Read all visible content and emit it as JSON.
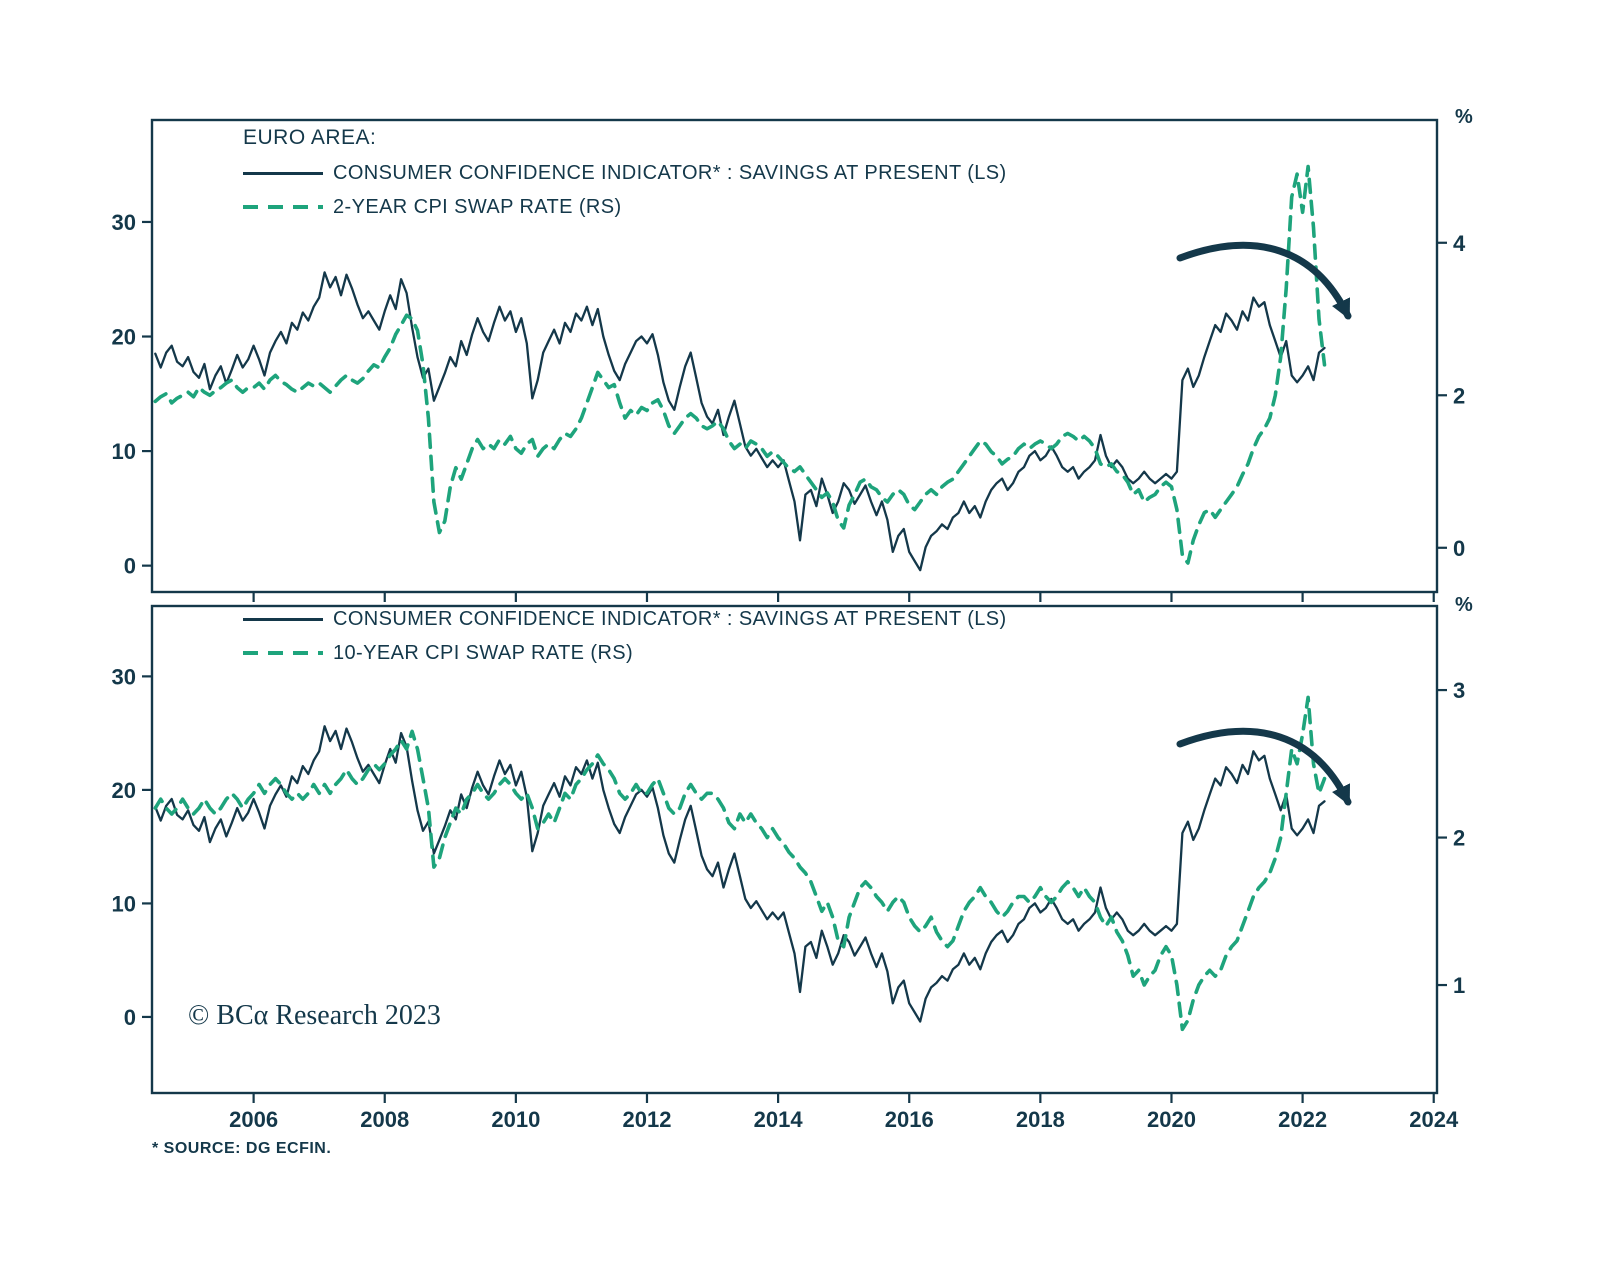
{
  "colors": {
    "confidence_line": "#14384a",
    "swap_line": "#1ea47c",
    "axis": "#14384a",
    "background": "#ffffff"
  },
  "footer": {
    "source_note": "* SOURCE: DG ECFIN.",
    "copyright": "© BCα Research 2023"
  },
  "chart_data": [
    {
      "type": "line",
      "panel": "top",
      "title": "EURO AREA:",
      "grid": false,
      "legend_position": "top-left-inside",
      "annotation": "curved-arrow-down-right",
      "x_ticks": [
        2006,
        2008,
        2010,
        2012,
        2014,
        2016,
        2018,
        2020,
        2022,
        2024
      ],
      "x_range": [
        2004.45,
        2024.05
      ],
      "left_axis": {
        "ticks": [
          30,
          20,
          10,
          0
        ],
        "lim": [
          -2.3,
          38.9
        ]
      },
      "right_axis": {
        "ticks": [
          4,
          2,
          0
        ],
        "lim": [
          -0.58,
          5.61
        ],
        "unit": "%"
      },
      "series": [
        {
          "name": "CONSUMER CONFIDENCE INDICATOR* : SAVINGS AT PRESENT (LS)",
          "axis": "left",
          "line_style": "solid",
          "x_start": 2004.5,
          "x_step_months": 1,
          "values": [
            18.5,
            17.3,
            18.6,
            19.2,
            17.8,
            17.4,
            18.2,
            16.9,
            16.4,
            17.6,
            15.4,
            16.6,
            17.4,
            15.9,
            17.1,
            18.4,
            17.3,
            18.0,
            19.2,
            18.0,
            16.6,
            18.6,
            19.6,
            20.4,
            19.4,
            21.2,
            20.6,
            22.1,
            21.4,
            22.6,
            23.4,
            25.6,
            24.3,
            25.2,
            23.6,
            25.4,
            24.2,
            22.8,
            21.6,
            22.2,
            21.4,
            20.6,
            22.2,
            23.6,
            22.4,
            25.0,
            23.8,
            20.8,
            18.2,
            16.4,
            17.2,
            14.4,
            15.6,
            16.8,
            18.2,
            17.4,
            19.6,
            18.4,
            20.2,
            21.6,
            20.4,
            19.6,
            21.2,
            22.6,
            21.4,
            22.2,
            20.4,
            21.6,
            19.4,
            14.6,
            16.2,
            18.6,
            19.6,
            20.6,
            19.4,
            21.2,
            20.4,
            22.0,
            21.4,
            22.6,
            21.0,
            22.4,
            20.0,
            18.4,
            17.0,
            16.2,
            17.6,
            18.6,
            19.6,
            20.0,
            19.4,
            20.2,
            18.4,
            16.0,
            14.4,
            13.6,
            15.6,
            17.4,
            18.6,
            16.4,
            14.2,
            13.0,
            12.4,
            13.6,
            11.4,
            13.0,
            14.4,
            12.4,
            10.4,
            9.6,
            10.2,
            9.4,
            8.6,
            9.2,
            8.6,
            9.2,
            7.4,
            5.6,
            2.2,
            6.2,
            6.6,
            5.2,
            7.6,
            6.2,
            4.6,
            5.6,
            7.2,
            6.6,
            5.4,
            6.2,
            7.0,
            5.6,
            4.4,
            5.6,
            4.0,
            1.2,
            2.6,
            3.2,
            1.2,
            0.4,
            -0.4,
            1.6,
            2.6,
            3.0,
            3.6,
            3.2,
            4.2,
            4.6,
            5.6,
            4.6,
            5.2,
            4.2,
            5.6,
            6.6,
            7.2,
            7.6,
            6.6,
            7.2,
            8.2,
            8.6,
            9.6,
            10.0,
            9.2,
            9.6,
            10.4,
            9.6,
            8.6,
            8.2,
            8.6,
            7.6,
            8.2,
            8.6,
            9.2,
            11.4,
            9.6,
            8.6,
            9.2,
            8.6,
            7.6,
            7.2,
            7.6,
            8.2,
            7.6,
            7.2,
            7.6,
            8.0,
            7.6,
            8.2,
            16.2,
            17.2,
            15.6,
            16.6,
            18.2,
            19.6,
            21.0,
            20.4,
            22.0,
            21.4,
            20.6,
            22.2,
            21.4,
            23.4,
            22.6,
            23.0,
            21.0,
            19.6,
            18.2,
            19.6,
            16.6,
            16.0,
            16.6,
            17.4,
            16.2,
            18.6,
            19.0
          ]
        },
        {
          "name": "2-YEAR CPI SWAP RATE (RS)",
          "axis": "right",
          "line_style": "dashed",
          "x_start": 2004.5,
          "x_step_months": 1,
          "values": [
            1.92,
            1.98,
            2.02,
            1.9,
            1.96,
            2.0,
            2.04,
            1.98,
            2.1,
            2.04,
            2.0,
            2.06,
            2.1,
            2.16,
            2.2,
            2.1,
            2.04,
            2.1,
            2.1,
            2.16,
            2.08,
            2.2,
            2.26,
            2.18,
            2.14,
            2.08,
            2.04,
            2.1,
            2.16,
            2.12,
            2.16,
            2.1,
            2.04,
            2.12,
            2.2,
            2.26,
            2.2,
            2.16,
            2.22,
            2.32,
            2.4,
            2.36,
            2.5,
            2.62,
            2.8,
            2.92,
            3.05,
            3.0,
            2.85,
            2.4,
            1.7,
            0.6,
            0.2,
            0.35,
            0.8,
            1.05,
            0.9,
            1.1,
            1.3,
            1.42,
            1.3,
            1.36,
            1.3,
            1.42,
            1.36,
            1.46,
            1.3,
            1.24,
            1.36,
            1.42,
            1.2,
            1.3,
            1.36,
            1.3,
            1.42,
            1.5,
            1.46,
            1.56,
            1.7,
            1.9,
            2.1,
            2.3,
            2.2,
            2.1,
            2.14,
            1.9,
            1.7,
            1.8,
            1.74,
            1.84,
            1.8,
            1.9,
            1.94,
            1.8,
            1.6,
            1.5,
            1.6,
            1.7,
            1.76,
            1.7,
            1.6,
            1.56,
            1.6,
            1.66,
            1.56,
            1.4,
            1.3,
            1.36,
            1.3,
            1.4,
            1.36,
            1.3,
            1.2,
            1.26,
            1.2,
            1.12,
            1.04,
            1.0,
            1.06,
            0.96,
            0.86,
            0.76,
            0.66,
            0.72,
            0.6,
            0.36,
            0.26,
            0.56,
            0.7,
            0.86,
            0.9,
            0.8,
            0.76,
            0.66,
            0.6,
            0.7,
            0.76,
            0.7,
            0.56,
            0.5,
            0.6,
            0.7,
            0.76,
            0.7,
            0.8,
            0.86,
            0.9,
            1.0,
            1.1,
            1.2,
            1.3,
            1.4,
            1.36,
            1.26,
            1.2,
            1.1,
            1.16,
            1.2,
            1.3,
            1.36,
            1.3,
            1.36,
            1.4,
            1.36,
            1.3,
            1.36,
            1.46,
            1.5,
            1.46,
            1.4,
            1.46,
            1.4,
            1.3,
            1.1,
            1.06,
            1.1,
            1.0,
            0.96,
            0.86,
            0.7,
            0.76,
            0.6,
            0.66,
            0.7,
            0.8,
            0.86,
            0.8,
            0.5,
            -0.1,
            -0.2,
            0.1,
            0.3,
            0.46,
            0.5,
            0.4,
            0.5,
            0.6,
            0.7,
            0.8,
            0.96,
            1.1,
            1.3,
            1.46,
            1.56,
            1.7,
            2.0,
            2.5,
            3.4,
            4.6,
            4.9,
            4.4,
            5.0,
            4.2,
            3.0,
            2.4
          ]
        }
      ]
    },
    {
      "type": "line",
      "panel": "bottom",
      "title": "",
      "grid": false,
      "legend_position": "top-left-inside",
      "annotation": "curved-arrow-down-right",
      "x_ticks": [
        2006,
        2008,
        2010,
        2012,
        2014,
        2016,
        2018,
        2020,
        2022,
        2024
      ],
      "x_range": [
        2004.45,
        2024.05
      ],
      "left_axis": {
        "ticks": [
          30,
          20,
          10,
          0
        ],
        "lim": [
          -6.7,
          36.2
        ]
      },
      "right_axis": {
        "ticks": [
          3,
          2,
          1
        ],
        "lim": [
          0.268,
          3.57
        ],
        "unit": "%"
      },
      "series": [
        {
          "name": "CONSUMER CONFIDENCE INDICATOR* : SAVINGS AT PRESENT (LS)",
          "axis": "left",
          "line_style": "solid",
          "x_start": 2004.5,
          "x_step_months": 1,
          "values": [
            18.5,
            17.3,
            18.6,
            19.2,
            17.8,
            17.4,
            18.2,
            16.9,
            16.4,
            17.6,
            15.4,
            16.6,
            17.4,
            15.9,
            17.1,
            18.4,
            17.3,
            18.0,
            19.2,
            18.0,
            16.6,
            18.6,
            19.6,
            20.4,
            19.4,
            21.2,
            20.6,
            22.1,
            21.4,
            22.6,
            23.4,
            25.6,
            24.3,
            25.2,
            23.6,
            25.4,
            24.2,
            22.8,
            21.6,
            22.2,
            21.4,
            20.6,
            22.2,
            23.6,
            22.4,
            25.0,
            23.8,
            20.8,
            18.2,
            16.4,
            17.2,
            14.4,
            15.6,
            16.8,
            18.2,
            17.4,
            19.6,
            18.4,
            20.2,
            21.6,
            20.4,
            19.6,
            21.2,
            22.6,
            21.4,
            22.2,
            20.4,
            21.6,
            19.4,
            14.6,
            16.2,
            18.6,
            19.6,
            20.6,
            19.4,
            21.2,
            20.4,
            22.0,
            21.4,
            22.6,
            21.0,
            22.4,
            20.0,
            18.4,
            17.0,
            16.2,
            17.6,
            18.6,
            19.6,
            20.0,
            19.4,
            20.2,
            18.4,
            16.0,
            14.4,
            13.6,
            15.6,
            17.4,
            18.6,
            16.4,
            14.2,
            13.0,
            12.4,
            13.6,
            11.4,
            13.0,
            14.4,
            12.4,
            10.4,
            9.6,
            10.2,
            9.4,
            8.6,
            9.2,
            8.6,
            9.2,
            7.4,
            5.6,
            2.2,
            6.2,
            6.6,
            5.2,
            7.6,
            6.2,
            4.6,
            5.6,
            7.2,
            6.6,
            5.4,
            6.2,
            7.0,
            5.6,
            4.4,
            5.6,
            4.0,
            1.2,
            2.6,
            3.2,
            1.2,
            0.4,
            -0.4,
            1.6,
            2.6,
            3.0,
            3.6,
            3.2,
            4.2,
            4.6,
            5.6,
            4.6,
            5.2,
            4.2,
            5.6,
            6.6,
            7.2,
            7.6,
            6.6,
            7.2,
            8.2,
            8.6,
            9.6,
            10.0,
            9.2,
            9.6,
            10.4,
            9.6,
            8.6,
            8.2,
            8.6,
            7.6,
            8.2,
            8.6,
            9.2,
            11.4,
            9.6,
            8.6,
            9.2,
            8.6,
            7.6,
            7.2,
            7.6,
            8.2,
            7.6,
            7.2,
            7.6,
            8.0,
            7.6,
            8.2,
            16.2,
            17.2,
            15.6,
            16.6,
            18.2,
            19.6,
            21.0,
            20.4,
            22.0,
            21.4,
            20.6,
            22.2,
            21.4,
            23.4,
            22.6,
            23.0,
            21.0,
            19.6,
            18.2,
            19.6,
            16.6,
            16.0,
            16.6,
            17.4,
            16.2,
            18.6,
            19.0
          ]
        },
        {
          "name": "10-YEAR CPI SWAP RATE (RS)",
          "axis": "right",
          "line_style": "dashed",
          "x_start": 2004.5,
          "x_step_months": 1,
          "values": [
            2.2,
            2.26,
            2.2,
            2.16,
            2.2,
            2.26,
            2.2,
            2.16,
            2.2,
            2.26,
            2.2,
            2.16,
            2.2,
            2.26,
            2.3,
            2.26,
            2.2,
            2.26,
            2.3,
            2.36,
            2.3,
            2.36,
            2.4,
            2.36,
            2.3,
            2.26,
            2.3,
            2.26,
            2.3,
            2.36,
            2.3,
            2.36,
            2.3,
            2.36,
            2.4,
            2.46,
            2.4,
            2.36,
            2.4,
            2.46,
            2.5,
            2.46,
            2.5,
            2.56,
            2.6,
            2.66,
            2.6,
            2.72,
            2.6,
            2.4,
            2.2,
            1.8,
            1.86,
            2.0,
            2.1,
            2.2,
            2.16,
            2.26,
            2.3,
            2.36,
            2.3,
            2.26,
            2.3,
            2.36,
            2.4,
            2.36,
            2.3,
            2.26,
            2.3,
            2.2,
            2.06,
            2.1,
            2.16,
            2.1,
            2.2,
            2.3,
            2.26,
            2.36,
            2.4,
            2.46,
            2.5,
            2.56,
            2.5,
            2.46,
            2.4,
            2.3,
            2.26,
            2.3,
            2.36,
            2.3,
            2.3,
            2.36,
            2.4,
            2.3,
            2.2,
            2.16,
            2.2,
            2.3,
            2.36,
            2.3,
            2.26,
            2.3,
            2.3,
            2.26,
            2.2,
            2.1,
            2.06,
            2.16,
            2.1,
            2.16,
            2.1,
            2.06,
            2.0,
            2.06,
            2.0,
            1.96,
            1.9,
            1.86,
            1.8,
            1.76,
            1.7,
            1.6,
            1.5,
            1.56,
            1.46,
            1.3,
            1.26,
            1.46,
            1.56,
            1.66,
            1.7,
            1.66,
            1.6,
            1.56,
            1.5,
            1.56,
            1.6,
            1.56,
            1.46,
            1.4,
            1.36,
            1.4,
            1.46,
            1.36,
            1.3,
            1.26,
            1.3,
            1.4,
            1.5,
            1.56,
            1.6,
            1.66,
            1.6,
            1.56,
            1.5,
            1.46,
            1.5,
            1.56,
            1.6,
            1.6,
            1.56,
            1.6,
            1.66,
            1.6,
            1.56,
            1.6,
            1.66,
            1.7,
            1.66,
            1.6,
            1.66,
            1.6,
            1.56,
            1.46,
            1.4,
            1.46,
            1.36,
            1.3,
            1.2,
            1.06,
            1.1,
            1.0,
            1.06,
            1.1,
            1.2,
            1.26,
            1.2,
            1.0,
            0.7,
            0.76,
            0.9,
            1.0,
            1.06,
            1.1,
            1.06,
            1.1,
            1.2,
            1.26,
            1.3,
            1.4,
            1.5,
            1.6,
            1.66,
            1.7,
            1.76,
            1.86,
            2.0,
            2.3,
            2.6,
            2.5,
            2.7,
            2.95,
            2.5,
            2.3,
            2.4
          ]
        }
      ]
    }
  ]
}
